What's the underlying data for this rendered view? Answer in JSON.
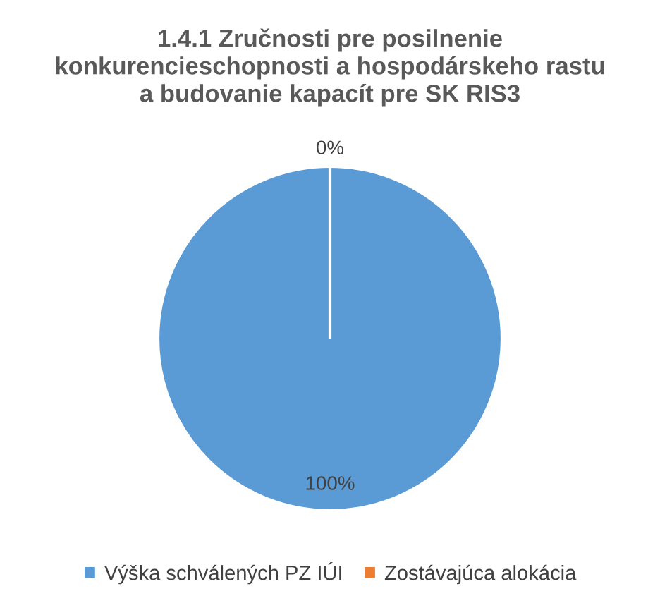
{
  "chart_data": {
    "type": "pie",
    "title": "1.4.1 Zručnosti pre posilnenie\nkonkurencieschopnosti a hospodárskeho rastu\na budovanie kapacít pre SK RIS3",
    "categories": [
      "Výška schválených PZ IÚI",
      "Zostávajúca alokácia"
    ],
    "values": [
      100,
      0
    ],
    "colors": [
      "#5b9bd5",
      "#ed7d31"
    ],
    "value_labels": [
      "100%",
      "0%"
    ],
    "legend": "bottom"
  }
}
